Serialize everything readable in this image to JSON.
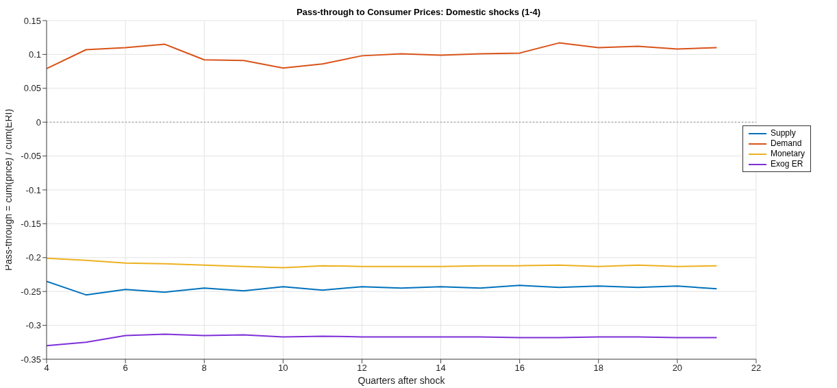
{
  "chart_data": {
    "type": "line",
    "title": "Pass-through to Consumer Prices: Domestic shocks (1-4)",
    "xlabel": "Quarters after shock",
    "ylabel": "Pass-through = cum(price) / cum(ERI)",
    "x": [
      4,
      5,
      6,
      7,
      8,
      9,
      10,
      11,
      12,
      13,
      14,
      15,
      16,
      17,
      18,
      19,
      20,
      21
    ],
    "series": [
      {
        "name": "Supply",
        "color": "#0072bd",
        "values": [
          -0.235,
          -0.255,
          -0.247,
          -0.251,
          -0.245,
          -0.249,
          -0.243,
          -0.248,
          -0.243,
          -0.245,
          -0.243,
          -0.245,
          -0.241,
          -0.244,
          -0.242,
          -0.244,
          -0.242,
          -0.246
        ]
      },
      {
        "name": "Demand",
        "color": "#d95319",
        "values": [
          0.079,
          0.107,
          0.11,
          0.115,
          0.092,
          0.091,
          0.08,
          0.086,
          0.098,
          0.101,
          0.099,
          0.101,
          0.102,
          0.117,
          0.11,
          0.112,
          0.108,
          0.11
        ]
      },
      {
        "name": "Monetary",
        "color": "#edb120",
        "values": [
          -0.201,
          -0.204,
          -0.208,
          -0.209,
          -0.211,
          -0.213,
          -0.215,
          -0.212,
          -0.213,
          -0.213,
          -0.213,
          -0.212,
          -0.212,
          -0.211,
          -0.213,
          -0.211,
          -0.213,
          -0.212
        ]
      },
      {
        "name": "Exog ER",
        "color": "#7e2fd8",
        "values": [
          -0.33,
          -0.325,
          -0.315,
          -0.313,
          -0.315,
          -0.314,
          -0.317,
          -0.316,
          -0.317,
          -0.317,
          -0.317,
          -0.317,
          -0.318,
          -0.318,
          -0.317,
          -0.317,
          -0.318,
          -0.318
        ]
      }
    ],
    "xlim": [
      4,
      22
    ],
    "xticks": [
      4,
      6,
      8,
      10,
      12,
      14,
      16,
      18,
      20,
      22
    ],
    "ylim": [
      -0.35,
      0.15
    ],
    "yticks": [
      -0.35,
      -0.3,
      -0.25,
      -0.2,
      -0.15,
      -0.1,
      -0.05,
      0,
      0.05,
      0.1,
      0.15
    ],
    "ref_lines": [
      {
        "axis": "y",
        "value": 0,
        "color": "#888888",
        "line_style": "dotted"
      }
    ],
    "grid": true,
    "legend": "right",
    "marker": "none",
    "line_style": "solid"
  }
}
